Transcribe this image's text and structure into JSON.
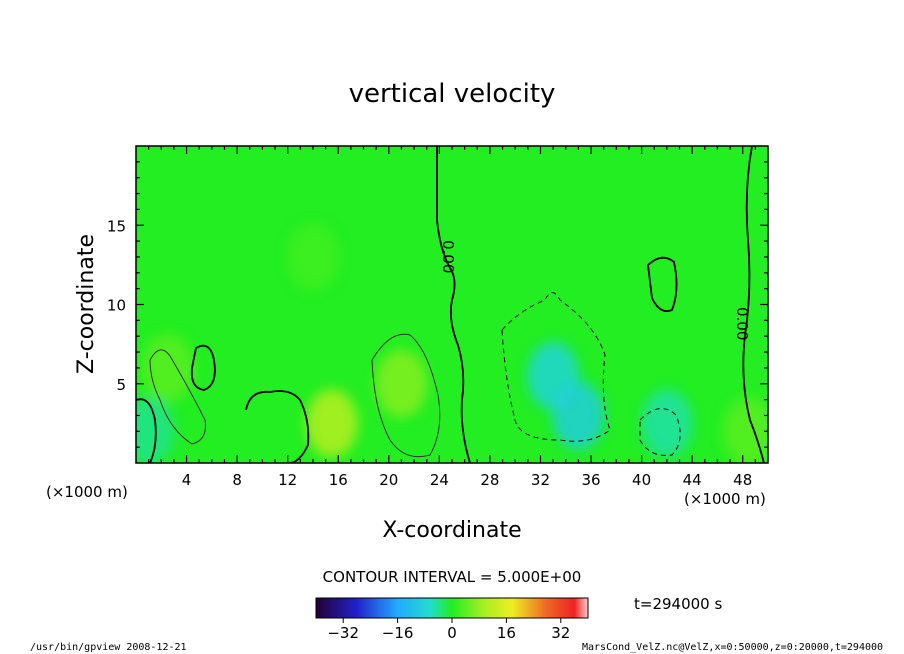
{
  "chart_data": {
    "type": "heatmap",
    "title": "vertical velocity",
    "xlabel": "X-coordinate",
    "ylabel": "Z-coordinate",
    "x_unit": "(×1000 m)",
    "y_unit": "(×1000 m)",
    "xlim": [
      0,
      50
    ],
    "ylim": [
      0,
      20
    ],
    "x_ticks": [
      4,
      8,
      12,
      16,
      20,
      24,
      28,
      32,
      36,
      40,
      44,
      48
    ],
    "y_ticks": [
      5,
      10,
      15
    ],
    "contour_interval": "CONTOUR INTERVAL = 5.000E+00",
    "time_label": "t=294000 s",
    "contour_labels": [
      "0.00",
      "0.00"
    ],
    "colorbar": {
      "range": [
        -40,
        40
      ],
      "ticks": [
        -32,
        -16,
        0,
        16,
        32
      ],
      "colormap": "rainbow"
    },
    "blobs": [
      {
        "x": 21,
        "z": 5,
        "value": 7
      },
      {
        "x": 15.5,
        "z": 2.5,
        "value": 11
      },
      {
        "x": 2.5,
        "z": 6,
        "value": 4
      },
      {
        "x": 1,
        "z": 2,
        "value": -4
      },
      {
        "x": 33,
        "z": 5.5,
        "value": -8
      },
      {
        "x": 35,
        "z": 3,
        "value": -9
      },
      {
        "x": 42,
        "z": 2.5,
        "value": -5
      },
      {
        "x": 48.5,
        "z": 2,
        "value": 4
      },
      {
        "x": 14,
        "z": 13,
        "value": 2
      }
    ]
  },
  "footer": {
    "left": "/usr/bin/gpview  2008-12-21",
    "right": "MarsCond_VelZ.nc@VelZ,x=0:50000,z=0:20000,t=294000"
  },
  "colors": {
    "field_base": "#22ee22",
    "frame": "#000000"
  }
}
